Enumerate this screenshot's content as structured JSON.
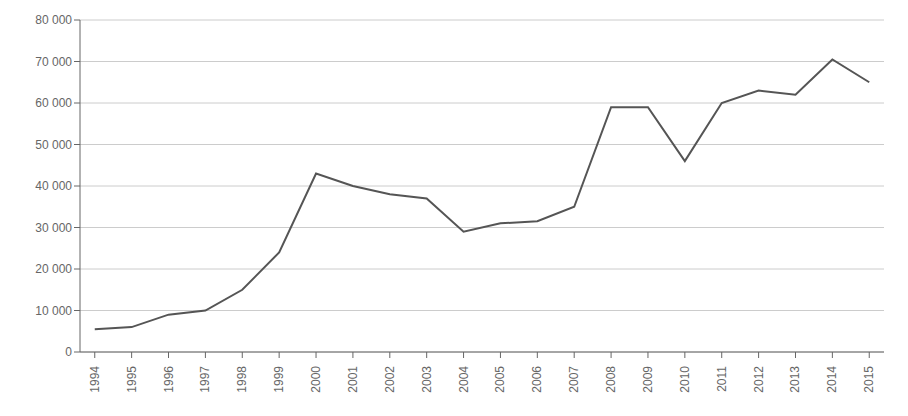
{
  "chart_data": {
    "type": "line",
    "x": [
      1994,
      1995,
      1996,
      1997,
      1998,
      1999,
      2000,
      2001,
      2002,
      2003,
      2004,
      2005,
      2006,
      2007,
      2008,
      2009,
      2010,
      2011,
      2012,
      2013,
      2014,
      2015
    ],
    "values": [
      5500,
      6000,
      9000,
      10000,
      15000,
      24000,
      43000,
      40000,
      38000,
      37000,
      29000,
      31000,
      31500,
      35000,
      59000,
      59000,
      46000,
      60000,
      63000,
      62000,
      70500,
      65000
    ],
    "color": "#555555",
    "xlim": [
      1993.6,
      2015.4
    ],
    "xticks": [
      1994,
      1995,
      1996,
      1997,
      1998,
      1999,
      2000,
      2001,
      2002,
      2003,
      2004,
      2005,
      2006,
      2007,
      2008,
      2009,
      2010,
      2011,
      2012,
      2013,
      2014,
      2015
    ],
    "ylim": [
      0,
      80000
    ],
    "yticks": [
      0,
      {
        "value": 10000,
        "label": "10 000"
      },
      {
        "value": 20000,
        "label": "20 000"
      },
      {
        "value": 30000,
        "label": "30 000"
      },
      {
        "value": 40000,
        "label": "40 000"
      },
      {
        "value": 50000,
        "label": "50 000"
      },
      {
        "value": 60000,
        "label": "60 000"
      },
      {
        "value": 70000,
        "label": "70 000"
      },
      {
        "value": 80000,
        "label": "80 000"
      }
    ],
    "grid": true
  }
}
